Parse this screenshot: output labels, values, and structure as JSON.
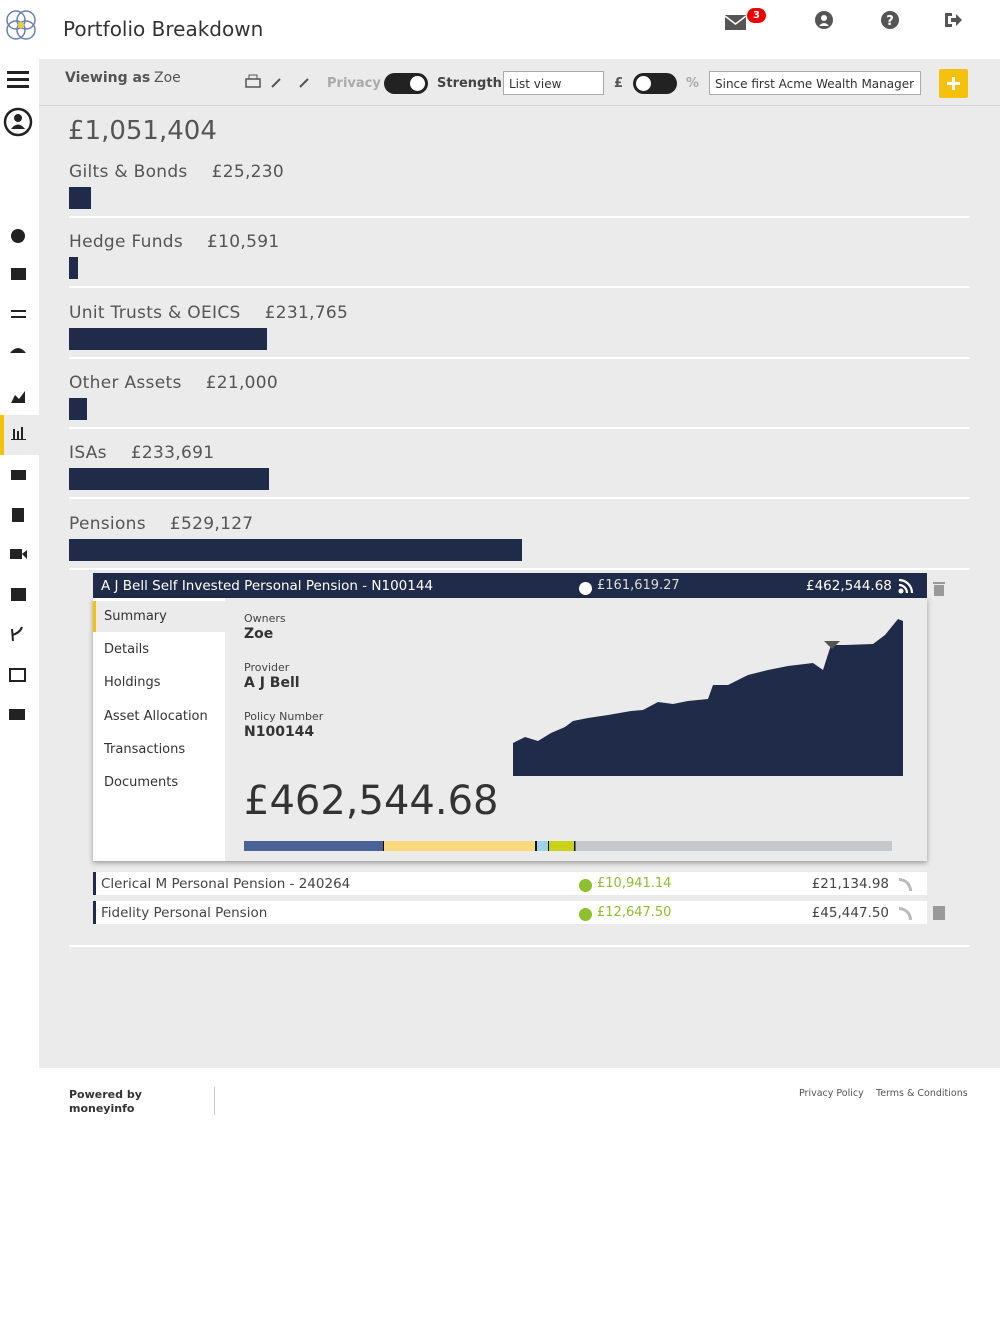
{
  "header": {
    "title": "Portfolio Breakdown",
    "notification_count": "3"
  },
  "toolbar": {
    "viewing_as_label": "Viewing as",
    "viewing_as": "Zoe",
    "privacy": "Privacy",
    "strength": "Strength",
    "view_select": "List view",
    "currency_symbol": "£",
    "percent_symbol": "%",
    "period_select": "Since first Acme Wealth Manager"
  },
  "total": "£1,051,404",
  "categories": [
    {
      "name": "Gilts & Bonds",
      "value": 25230,
      "value_label": "£25,230"
    },
    {
      "name": "Hedge Funds",
      "value": 10591,
      "value_label": "£10,591"
    },
    {
      "name": "Unit Trusts & OEICS",
      "value": 231765,
      "value_label": "£231,765"
    },
    {
      "name": "Other Assets",
      "value": 21000,
      "value_label": "£21,000"
    },
    {
      "name": "ISAs",
      "value": 233691,
      "value_label": "£233,691"
    },
    {
      "name": "Pensions",
      "value": 529127,
      "value_label": "£529,127"
    }
  ],
  "expanded_policy": {
    "name": "A J Bell Self Invested Personal Pension - N100144",
    "gain": "£161,619.27",
    "value": "£462,544.68",
    "tabs": [
      "Summary",
      "Details",
      "Holdings",
      "Asset Allocation",
      "Transactions",
      "Documents"
    ],
    "fields": [
      {
        "label": "Owners",
        "value": "Zoe"
      },
      {
        "label": "Provider",
        "value": "A J Bell"
      },
      {
        "label": "Policy Number",
        "value": "N100144"
      }
    ]
  },
  "policies": [
    {
      "name": "Clerical M Personal Pension - 240264",
      "gain": "£10,941.14",
      "value": "£21,134.98"
    },
    {
      "name": "Fidelity Personal Pension",
      "gain": "£12,647.50",
      "value": "£45,447.50"
    }
  ],
  "footer": {
    "powered_by": "Powered by",
    "brand": "moneyinfo",
    "links": [
      "Privacy Policy",
      "Terms & Conditions"
    ]
  }
}
